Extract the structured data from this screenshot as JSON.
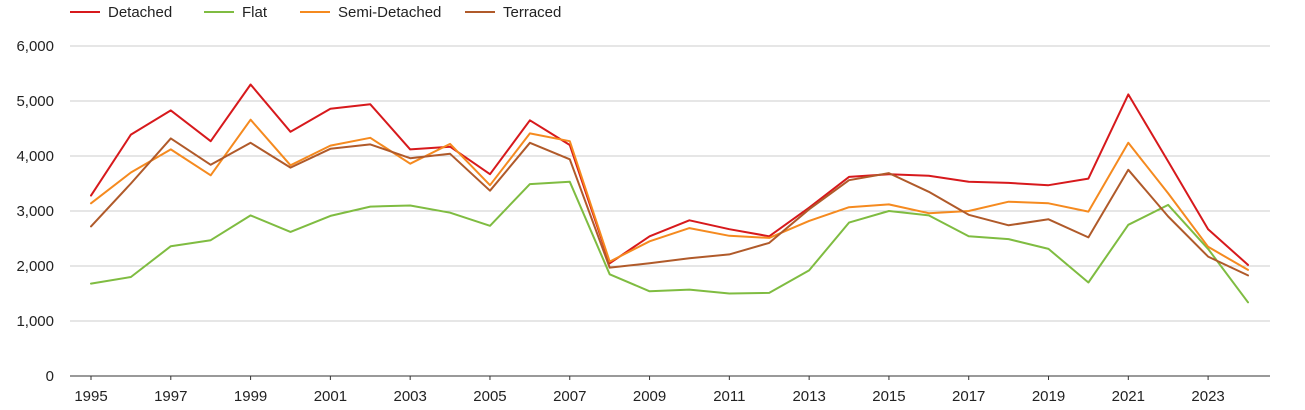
{
  "chart_data": {
    "type": "line",
    "title": "",
    "xlabel": "",
    "ylabel": "",
    "x": [
      1995,
      1996,
      1997,
      1998,
      1999,
      2000,
      2001,
      2002,
      2003,
      2004,
      2005,
      2006,
      2007,
      2008,
      2009,
      2010,
      2011,
      2012,
      2013,
      2014,
      2015,
      2016,
      2017,
      2018,
      2019,
      2020,
      2021,
      2022,
      2023,
      2024
    ],
    "xticks": [
      "1995",
      "1997",
      "1999",
      "2001",
      "2003",
      "2005",
      "2007",
      "2009",
      "2011",
      "2013",
      "2015",
      "2017",
      "2019",
      "2021",
      "2023"
    ],
    "yticks": [
      "0",
      "1,000",
      "2,000",
      "3,000",
      "4,000",
      "5,000",
      "6,000"
    ],
    "ylim": [
      0,
      6000
    ],
    "grid": true,
    "legend_position": "top-left",
    "series": [
      {
        "name": "Detached",
        "color": "#d7191c",
        "values": [
          3280,
          4390,
          4830,
          4270,
          5300,
          4440,
          4860,
          4940,
          4120,
          4170,
          3670,
          4650,
          4200,
          2050,
          2540,
          2830,
          2670,
          2540,
          3060,
          3620,
          3670,
          3640,
          3530,
          3510,
          3470,
          3590,
          5120,
          3900,
          2670,
          2020
        ]
      },
      {
        "name": "Flat",
        "color": "#7fbc41",
        "values": [
          1680,
          1800,
          2360,
          2470,
          2920,
          2620,
          2910,
          3080,
          3100,
          2970,
          2730,
          3490,
          3530,
          1850,
          1540,
          1570,
          1500,
          1510,
          1920,
          2790,
          3000,
          2920,
          2540,
          2490,
          2310,
          1700,
          2750,
          3110,
          2310,
          1340
        ]
      },
      {
        "name": "Semi-Detached",
        "color": "#f58a1f",
        "values": [
          3140,
          3700,
          4120,
          3650,
          4660,
          3830,
          4190,
          4330,
          3860,
          4220,
          3470,
          4410,
          4270,
          2080,
          2450,
          2690,
          2550,
          2510,
          2820,
          3070,
          3120,
          2960,
          3000,
          3170,
          3140,
          2990,
          4240,
          3320,
          2350,
          1930
        ]
      },
      {
        "name": "Terraced",
        "color": "#b05a2a",
        "values": [
          2720,
          3500,
          4320,
          3840,
          4240,
          3790,
          4130,
          4210,
          3960,
          4040,
          3370,
          4240,
          3940,
          1970,
          2050,
          2140,
          2210,
          2420,
          3030,
          3560,
          3690,
          3350,
          2930,
          2740,
          2850,
          2520,
          3750,
          2900,
          2170,
          1830
        ]
      }
    ]
  }
}
